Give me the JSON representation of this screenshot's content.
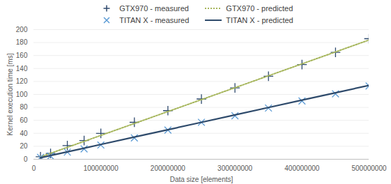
{
  "chart_data": {
    "type": "line",
    "xlabel": "Data size [elements]",
    "ylabel": "Kernel execution time [ms]",
    "x": [
      10000000,
      25000000,
      50000000,
      75000000,
      100000000,
      150000000,
      200000000,
      250000000,
      300000000,
      350000000,
      400000000,
      450000000,
      500000000
    ],
    "series": [
      {
        "name": "GTX970 - measured",
        "type": "scatter",
        "marker": "plus",
        "color": "#2f4a6e",
        "values": [
          4,
          9,
          21,
          29,
          40,
          57,
          75,
          93,
          110,
          128,
          146,
          165,
          186
        ]
      },
      {
        "name": "GTX970 - predicted",
        "type": "line",
        "line_style": "dotted",
        "color": "#a5b55a",
        "values": [
          3.7,
          9.2,
          18.4,
          27.6,
          36.8,
          55.2,
          73.6,
          92,
          110.4,
          128.8,
          147.2,
          165.6,
          184
        ]
      },
      {
        "name": "TITAN X - measured",
        "type": "scatter",
        "marker": "times",
        "color": "#5b9bd5",
        "values": [
          3,
          5,
          11,
          16,
          22,
          33,
          45,
          57,
          67,
          79,
          90,
          101,
          113
        ]
      },
      {
        "name": "TITAN X - predicted",
        "type": "line",
        "line_style": "solid",
        "color": "#2e4a6b",
        "values": [
          2.3,
          5.7,
          11.4,
          17.1,
          22.8,
          34.2,
          45.6,
          57,
          68.4,
          79.8,
          91.2,
          102.6,
          114
        ]
      }
    ],
    "xlim": [
      0,
      500000000
    ],
    "xticks": [
      0,
      100000000,
      200000000,
      300000000,
      400000000,
      500000000
    ],
    "ylim": [
      0,
      200
    ],
    "yticks": [
      0,
      20,
      40,
      60,
      80,
      100,
      120,
      140,
      160,
      180,
      200
    ],
    "grid": true,
    "legend": "top"
  }
}
